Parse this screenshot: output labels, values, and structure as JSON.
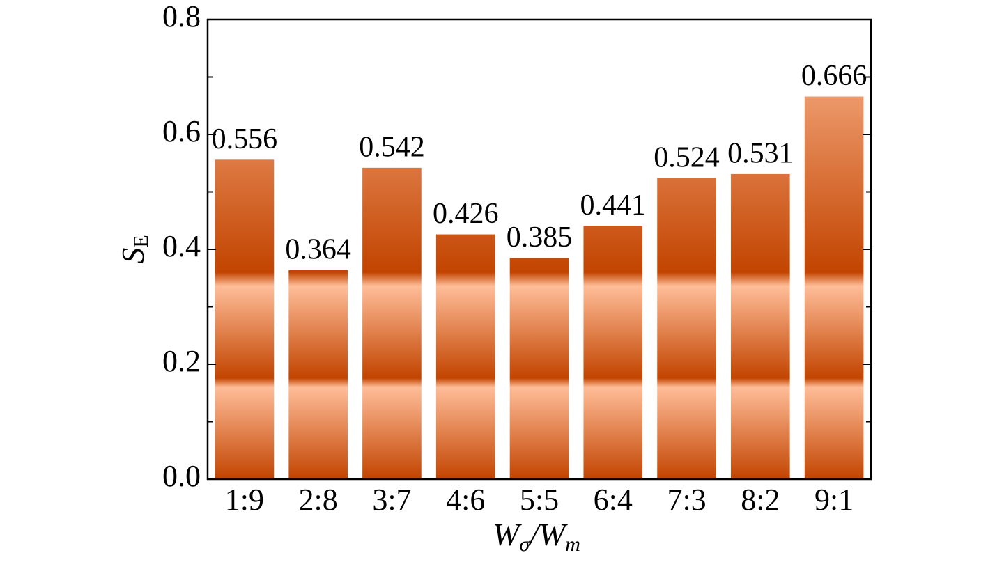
{
  "chart_data": {
    "type": "bar",
    "categories": [
      "1:9",
      "2:8",
      "3:7",
      "4:6",
      "5:5",
      "6:4",
      "7:3",
      "8:2",
      "9:1"
    ],
    "values": [
      0.556,
      0.364,
      0.542,
      0.426,
      0.385,
      0.441,
      0.524,
      0.531,
      0.666
    ],
    "colors": [
      "#ffbd98",
      "#c24400"
    ],
    "ylim": [
      0,
      0.8
    ],
    "yticks": [
      {
        "value": 0,
        "label": "0.0"
      },
      0.2,
      0.4,
      0.6,
      0.8
    ],
    "yminorticks": [
      0.1,
      0.3,
      0.5,
      0.7
    ],
    "ylabel": {
      "text": "S",
      "subscript": "E"
    },
    "xlabel": [
      {
        "text": "W",
        "subscript": "σ"
      },
      {
        "text": "/W",
        "subscript": "m"
      }
    ]
  }
}
